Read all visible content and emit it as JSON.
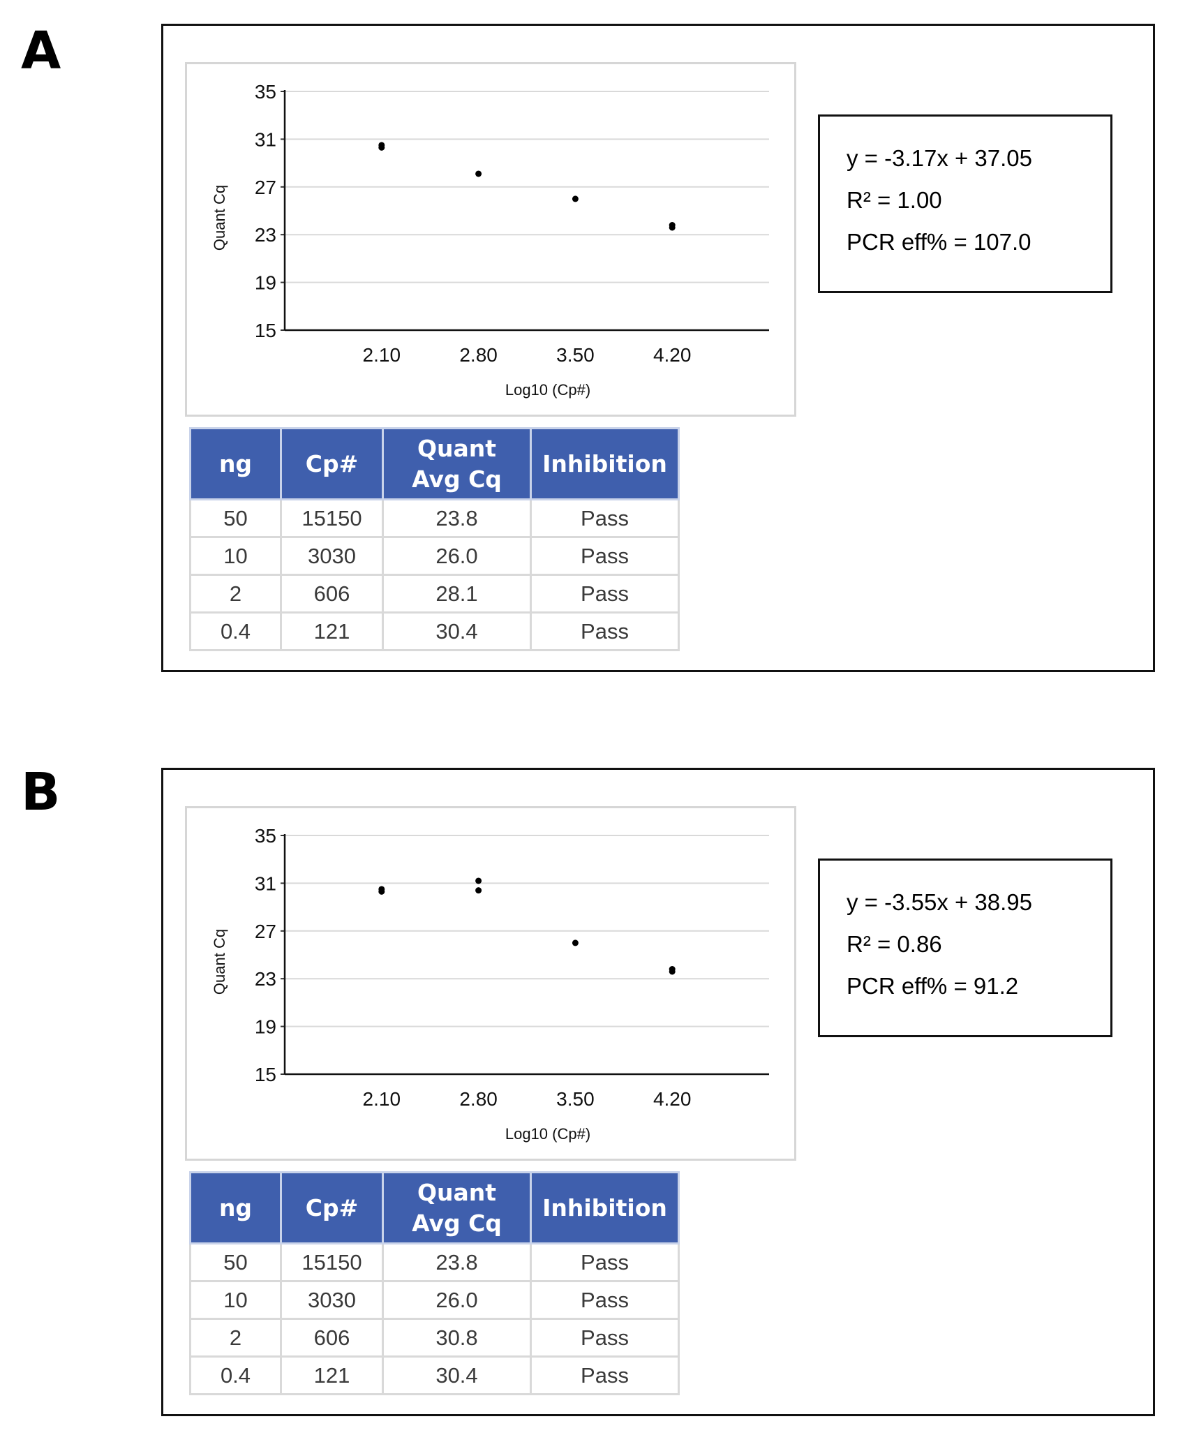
{
  "panels": [
    {
      "label": "A",
      "equation": {
        "line1": "y = -3.17x + 37.05",
        "line2": "R² = 1.00",
        "line3": "PCR eff% = 107.0"
      },
      "table": {
        "headers": [
          "ng",
          "Cp#",
          "Quant Avg Cq",
          "Inhibition"
        ],
        "rows": [
          [
            "50",
            "15150",
            "23.8",
            "Pass"
          ],
          [
            "10",
            "3030",
            "26.0",
            "Pass"
          ],
          [
            "2",
            "606",
            "28.1",
            "Pass"
          ],
          [
            "0.4",
            "121",
            "30.4",
            "Pass"
          ]
        ]
      }
    },
    {
      "label": "B",
      "equation": {
        "line1": "y = -3.55x + 38.95",
        "line2": "R² = 0.86",
        "line3": "PCR eff% = 91.2"
      },
      "table": {
        "headers": [
          "ng",
          "Cp#",
          "Quant Avg Cq",
          "Inhibition"
        ],
        "rows": [
          [
            "50",
            "15150",
            "23.8",
            "Pass"
          ],
          [
            "10",
            "3030",
            "26.0",
            "Pass"
          ],
          [
            "2",
            "606",
            "30.8",
            "Pass"
          ],
          [
            "0.4",
            "121",
            "30.4",
            "Pass"
          ]
        ]
      }
    }
  ],
  "chart_data": [
    {
      "type": "scatter",
      "panel": "A",
      "xlabel": "Log10 (Cp#)",
      "ylabel": "Quant Cq",
      "x_ticks": [
        "2.10",
        "2.80",
        "3.50",
        "4.20"
      ],
      "y_ticks": [
        "15",
        "19",
        "23",
        "27",
        "31",
        "35"
      ],
      "xlim": [
        1.4,
        4.9
      ],
      "ylim": [
        15,
        35
      ],
      "grid": true,
      "points": [
        {
          "x": 2.1,
          "y": 30.5
        },
        {
          "x": 2.1,
          "y": 30.3
        },
        {
          "x": 2.8,
          "y": 28.1
        },
        {
          "x": 3.5,
          "y": 26.0
        },
        {
          "x": 4.2,
          "y": 23.8
        },
        {
          "x": 4.2,
          "y": 23.6
        }
      ]
    },
    {
      "type": "scatter",
      "panel": "B",
      "xlabel": "Log10 (Cp#)",
      "ylabel": "Quant Cq",
      "x_ticks": [
        "2.10",
        "2.80",
        "3.50",
        "4.20"
      ],
      "y_ticks": [
        "15",
        "19",
        "23",
        "27",
        "31",
        "35"
      ],
      "xlim": [
        1.4,
        4.9
      ],
      "ylim": [
        15,
        35
      ],
      "grid": true,
      "points": [
        {
          "x": 2.1,
          "y": 30.5
        },
        {
          "x": 2.1,
          "y": 30.3
        },
        {
          "x": 2.8,
          "y": 31.2
        },
        {
          "x": 2.8,
          "y": 30.4
        },
        {
          "x": 3.5,
          "y": 26.0
        },
        {
          "x": 4.2,
          "y": 23.8
        },
        {
          "x": 4.2,
          "y": 23.6
        }
      ]
    }
  ]
}
